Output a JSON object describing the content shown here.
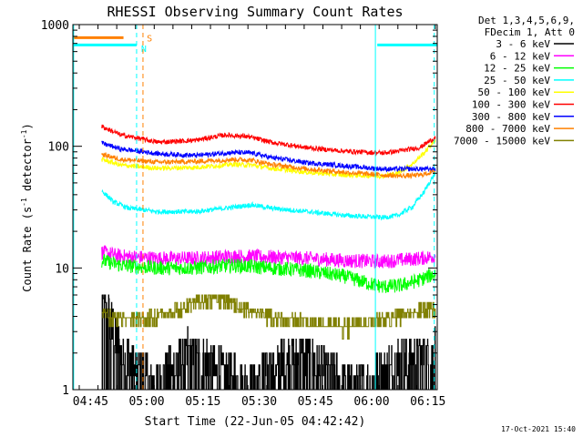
{
  "chart_data": {
    "type": "line",
    "title": "RHESSI Observing Summary Count Rates",
    "xlabel": "Start Time (22-Jun-05 04:42:42)",
    "ylabel": "Count Rate (s-1 detector-1)",
    "ylabel_parts": {
      "prefix": "Count Rate (s",
      "sup1": "-1",
      "mid": " detector",
      "sup2": "-1",
      "suffix": ")"
    },
    "yscale": "log",
    "ylim": [
      1,
      1000
    ],
    "xlim_minutes": [
      -2.7,
      94.5
    ],
    "ytick_labels": [
      {
        "value": 1,
        "label": "1"
      },
      {
        "value": 10,
        "label": "10"
      },
      {
        "value": 100,
        "label": "100"
      },
      {
        "value": 1000,
        "label": "1000"
      }
    ],
    "xtick_labels": [
      {
        "minute": 2,
        "label": "04:45"
      },
      {
        "minute": 17,
        "label": "05:00"
      },
      {
        "minute": 32,
        "label": "05:15"
      },
      {
        "minute": 47,
        "label": "05:30"
      },
      {
        "minute": 62,
        "label": "05:45"
      },
      {
        "minute": 77,
        "label": "06:00"
      },
      {
        "minute": 92,
        "label": "06:15"
      }
    ],
    "legend": {
      "placement": "right",
      "header": [
        "Det 1,3,4,5,6,9,",
        "FDecim 1, Att 0"
      ],
      "entries": [
        {
          "label": "3 - 6 keV",
          "color": "#000000"
        },
        {
          "label": "6 - 12 keV",
          "color": "#ff00ff"
        },
        {
          "label": "12 - 25 keV",
          "color": "#00ff00"
        },
        {
          "label": "25 - 50 keV",
          "color": "#00ffff"
        },
        {
          "label": "50 - 100 keV",
          "color": "#ffff00"
        },
        {
          "label": "100 - 300 keV",
          "color": "#ff0000"
        },
        {
          "label": "300 - 800 keV",
          "color": "#0000ff"
        },
        {
          "label": "800 - 7000 keV",
          "color": "#ff8000"
        },
        {
          "label": "7000 - 15000 keV",
          "color": "#808000"
        }
      ]
    },
    "series": [
      {
        "name": "3 - 6 keV",
        "color": "#000000",
        "noise": 0.2,
        "kind": "step",
        "points": [
          [
            5,
            6
          ],
          [
            8,
            3.5
          ],
          [
            10,
            2.2
          ],
          [
            15,
            1.5
          ],
          [
            20,
            1.3
          ],
          [
            28,
            2.3
          ],
          [
            35,
            1.8
          ],
          [
            40,
            1.4
          ],
          [
            45,
            1.3
          ],
          [
            50,
            1.5
          ],
          [
            55,
            2.2
          ],
          [
            60,
            2.0
          ],
          [
            65,
            1.6
          ],
          [
            70,
            1.3
          ],
          [
            75,
            1.2
          ],
          [
            80,
            1.5
          ],
          [
            85,
            2.0
          ],
          [
            90,
            2.2
          ],
          [
            94,
            2.3
          ]
        ]
      },
      {
        "name": "6 - 12 keV",
        "color": "#ff00ff",
        "noise": 0.06,
        "points": [
          [
            5,
            13.5
          ],
          [
            10,
            12.5
          ],
          [
            20,
            12
          ],
          [
            30,
            12
          ],
          [
            40,
            12.5
          ],
          [
            50,
            12.3
          ],
          [
            60,
            12
          ],
          [
            70,
            11.5
          ],
          [
            80,
            11.3
          ],
          [
            90,
            12
          ],
          [
            94,
            12.5
          ]
        ]
      },
      {
        "name": "12 - 25 keV",
        "color": "#00ff00",
        "noise": 0.06,
        "points": [
          [
            5,
            11.5
          ],
          [
            10,
            10.5
          ],
          [
            20,
            10
          ],
          [
            30,
            10
          ],
          [
            40,
            10.5
          ],
          [
            50,
            10
          ],
          [
            60,
            9.5
          ],
          [
            70,
            8.5
          ],
          [
            76,
            7.5
          ],
          [
            80,
            7
          ],
          [
            85,
            7.2
          ],
          [
            90,
            8
          ],
          [
            94,
            9
          ]
        ]
      },
      {
        "name": "25 - 50 keV",
        "color": "#00ffff",
        "noise": 0.02,
        "points": [
          [
            5,
            43
          ],
          [
            8,
            35
          ],
          [
            12,
            31
          ],
          [
            20,
            29
          ],
          [
            30,
            29
          ],
          [
            38,
            31
          ],
          [
            45,
            33
          ],
          [
            50,
            31
          ],
          [
            60,
            29
          ],
          [
            70,
            27
          ],
          [
            80,
            26
          ],
          [
            84,
            27
          ],
          [
            88,
            32
          ],
          [
            91,
            42
          ],
          [
            94,
            60
          ]
        ]
      },
      {
        "name": "50 - 100 keV",
        "color": "#ffff00",
        "noise": 0.02,
        "points": [
          [
            5,
            78
          ],
          [
            10,
            70
          ],
          [
            20,
            66
          ],
          [
            30,
            67
          ],
          [
            40,
            71
          ],
          [
            45,
            70
          ],
          [
            50,
            66
          ],
          [
            60,
            61
          ],
          [
            70,
            58
          ],
          [
            80,
            57
          ],
          [
            84,
            60
          ],
          [
            88,
            72
          ],
          [
            91,
            88
          ],
          [
            94,
            112
          ]
        ]
      },
      {
        "name": "100 - 300 keV",
        "color": "#ff0000",
        "noise": 0.02,
        "points": [
          [
            5,
            145
          ],
          [
            10,
            124
          ],
          [
            20,
            108
          ],
          [
            30,
            112
          ],
          [
            38,
            124
          ],
          [
            44,
            120
          ],
          [
            50,
            108
          ],
          [
            60,
            97
          ],
          [
            70,
            91
          ],
          [
            80,
            88
          ],
          [
            85,
            92
          ],
          [
            90,
            98
          ],
          [
            94,
            118
          ]
        ]
      },
      {
        "name": "300 - 800 keV",
        "color": "#0000ff",
        "noise": 0.02,
        "points": [
          [
            5,
            106
          ],
          [
            10,
            95
          ],
          [
            20,
            87
          ],
          [
            30,
            84
          ],
          [
            40,
            89
          ],
          [
            45,
            88
          ],
          [
            50,
            81
          ],
          [
            60,
            73
          ],
          [
            70,
            69
          ],
          [
            80,
            65
          ],
          [
            85,
            65
          ],
          [
            90,
            65
          ],
          [
            94,
            65
          ]
        ]
      },
      {
        "name": "800 - 7000 keV",
        "color": "#ff8000",
        "noise": 0.02,
        "points": [
          [
            5,
            86
          ],
          [
            10,
            78
          ],
          [
            20,
            74
          ],
          [
            30,
            75
          ],
          [
            40,
            78
          ],
          [
            45,
            77
          ],
          [
            50,
            71
          ],
          [
            60,
            65
          ],
          [
            70,
            61
          ],
          [
            80,
            58
          ],
          [
            85,
            57
          ],
          [
            90,
            58
          ],
          [
            94,
            62
          ]
        ]
      },
      {
        "name": "7000 - 15000 keV",
        "color": "#808000",
        "noise": 0.0,
        "kind": "step",
        "points": [
          [
            5,
            4.3
          ],
          [
            8,
            3.9
          ],
          [
            12,
            3.6
          ],
          [
            18,
            4.0
          ],
          [
            24,
            4.3
          ],
          [
            30,
            5.2
          ],
          [
            36,
            5.6
          ],
          [
            41,
            4.9
          ],
          [
            45,
            4.3
          ],
          [
            52,
            3.9
          ],
          [
            60,
            3.6
          ],
          [
            70,
            3.3
          ],
          [
            76,
            3.6
          ],
          [
            82,
            3.9
          ],
          [
            88,
            4.3
          ],
          [
            94,
            4.6
          ]
        ]
      }
    ],
    "annotations": [
      {
        "type": "hbar",
        "color": "#ff8000",
        "x0": -2.7,
        "x1": 10.8,
        "y": 780
      },
      {
        "type": "hbar",
        "color": "#00ffff",
        "x0": -2.7,
        "x1": 14.3,
        "y": 680
      },
      {
        "type": "hbar",
        "color": "#00ffff",
        "x0": 78.5,
        "x1": 94.5,
        "y": 680
      },
      {
        "type": "vline",
        "color": "#00ffff",
        "x": 14.3,
        "style": "dashed"
      },
      {
        "type": "vline",
        "color": "#ff8000",
        "x": 16.0,
        "style": "dashed"
      },
      {
        "type": "vline",
        "color": "#00ffff",
        "x": 78.0,
        "style": "solid"
      },
      {
        "type": "vline",
        "color": "#00ffff",
        "x": 93.7,
        "style": "dashed"
      },
      {
        "type": "vline",
        "color": "#00ffff",
        "x": -2.5,
        "style": "solid"
      },
      {
        "type": "text",
        "label": "S",
        "color": "#ff8000",
        "x": 17.0,
        "y": 780
      },
      {
        "type": "text",
        "label": "N",
        "color": "#00ffff",
        "x": 15.5,
        "y": 640
      }
    ]
  },
  "timestamp": "17-Oct-2021 15:40"
}
